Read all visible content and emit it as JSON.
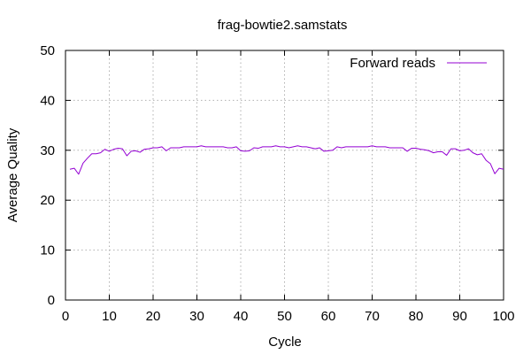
{
  "chart_data": {
    "type": "line",
    "title": "frag-bowtie2.samstats",
    "xlabel": "Cycle",
    "ylabel": "Average Quality",
    "xlim": [
      0,
      100
    ],
    "ylim": [
      0,
      50
    ],
    "xticks": [
      0,
      10,
      20,
      30,
      40,
      50,
      60,
      70,
      80,
      90,
      100
    ],
    "yticks": [
      0,
      10,
      20,
      30,
      40,
      50
    ],
    "grid": true,
    "legend": "top-right",
    "series": [
      {
        "name": "Forward reads",
        "color": "#9400d3",
        "x": [
          1,
          2,
          3,
          4,
          5,
          6,
          7,
          8,
          9,
          10,
          11,
          12,
          13,
          14,
          15,
          16,
          17,
          18,
          19,
          20,
          21,
          22,
          23,
          24,
          25,
          26,
          27,
          28,
          29,
          30,
          31,
          32,
          33,
          34,
          35,
          36,
          37,
          38,
          39,
          40,
          41,
          42,
          43,
          44,
          45,
          46,
          47,
          48,
          49,
          50,
          51,
          52,
          53,
          54,
          55,
          56,
          57,
          58,
          59,
          60,
          61,
          62,
          63,
          64,
          65,
          66,
          67,
          68,
          69,
          70,
          71,
          72,
          73,
          74,
          75,
          76,
          77,
          78,
          79,
          80,
          81,
          82,
          83,
          84,
          85,
          86,
          87,
          88,
          89,
          90,
          91,
          92,
          93,
          94,
          95,
          96,
          97,
          98,
          99,
          100
        ],
        "values": [
          26.2,
          26.4,
          25.2,
          27.4,
          28.4,
          29.3,
          29.3,
          29.5,
          30.2,
          29.8,
          30.2,
          30.4,
          30.3,
          28.9,
          29.8,
          29.9,
          29.6,
          30.2,
          30.3,
          30.5,
          30.5,
          30.7,
          29.9,
          30.5,
          30.5,
          30.5,
          30.7,
          30.7,
          30.7,
          30.7,
          30.9,
          30.7,
          30.7,
          30.7,
          30.7,
          30.7,
          30.5,
          30.5,
          30.7,
          29.9,
          29.8,
          29.9,
          30.5,
          30.4,
          30.7,
          30.7,
          30.7,
          30.9,
          30.7,
          30.7,
          30.5,
          30.7,
          30.9,
          30.7,
          30.7,
          30.5,
          30.3,
          30.5,
          29.8,
          29.9,
          30.0,
          30.7,
          30.5,
          30.7,
          30.7,
          30.7,
          30.7,
          30.7,
          30.7,
          30.9,
          30.7,
          30.7,
          30.7,
          30.5,
          30.5,
          30.5,
          30.5,
          29.8,
          30.4,
          30.4,
          30.2,
          30.1,
          29.9,
          29.5,
          29.7,
          29.7,
          29.0,
          30.3,
          30.3,
          29.9,
          30.0,
          30.3,
          29.5,
          29.1,
          29.3,
          28.0,
          27.3,
          25.3,
          26.4,
          26.2
        ]
      }
    ]
  }
}
